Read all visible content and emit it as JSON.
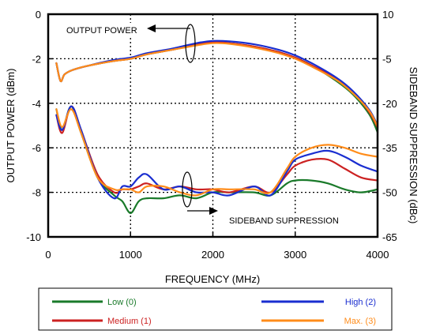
{
  "chart_data": {
    "type": "line",
    "xlabel": "FREQUENCY (MHz)",
    "ylabel_left": "OUTPUT POWER (dBm)",
    "ylabel_right": "SIDEBAND SUPPRESSION (dBc)",
    "xlim": [
      0,
      4000
    ],
    "ylim_left": [
      -10,
      0
    ],
    "ylim_right": [
      -65,
      10
    ],
    "x_ticks": [
      "0",
      "1000",
      "2000",
      "3000",
      "4000"
    ],
    "y_ticks_left": [
      "0",
      "-2",
      "-4",
      "-6",
      "-8",
      "-10"
    ],
    "y_ticks_right": [
      "10",
      "-5",
      "-20",
      "-35",
      "-50",
      "-65"
    ],
    "grid": true,
    "legend_position": "bottom",
    "annotations": {
      "output_power": "OUTPUT POWER",
      "sideband_suppression": "SIDEBAND SUPPRESSION"
    },
    "series": [
      {
        "name": "Low (0)",
        "color": "#1a7a2a",
        "group": "output_power",
        "axis": "left",
        "x": [
          100,
          150,
          200,
          300,
          500,
          800,
          1000,
          1200,
          1500,
          1800,
          2000,
          2200,
          2500,
          2800,
          3000,
          3200,
          3500,
          3700,
          3900,
          4000
        ],
        "y": [
          -2.2,
          -3.0,
          -2.7,
          -2.5,
          -2.3,
          -2.1,
          -2.0,
          -1.8,
          -1.6,
          -1.35,
          -1.25,
          -1.3,
          -1.45,
          -1.7,
          -1.95,
          -2.3,
          -3.0,
          -3.6,
          -4.5,
          -5.3
        ]
      },
      {
        "name": "Medium (1)",
        "color": "#cc2222",
        "group": "output_power",
        "axis": "left",
        "x": [
          100,
          150,
          200,
          300,
          500,
          800,
          1000,
          1200,
          1500,
          1800,
          2000,
          2200,
          2500,
          2800,
          3000,
          3200,
          3500,
          3700,
          3900,
          4000
        ],
        "y": [
          -2.2,
          -3.0,
          -2.7,
          -2.5,
          -2.3,
          -2.1,
          -2.0,
          -1.8,
          -1.6,
          -1.35,
          -1.25,
          -1.3,
          -1.45,
          -1.7,
          -1.95,
          -2.3,
          -2.9,
          -3.5,
          -4.4,
          -5.1
        ]
      },
      {
        "name": "High (2)",
        "color": "#1a2ed0",
        "group": "output_power",
        "axis": "left",
        "x": [
          100,
          150,
          200,
          300,
          500,
          800,
          1000,
          1200,
          1500,
          1800,
          2000,
          2200,
          2500,
          2800,
          3000,
          3200,
          3500,
          3700,
          3900,
          4000
        ],
        "y": [
          -2.2,
          -3.0,
          -2.7,
          -2.5,
          -2.3,
          -2.05,
          -1.95,
          -1.75,
          -1.55,
          -1.3,
          -1.2,
          -1.22,
          -1.35,
          -1.6,
          -1.85,
          -2.2,
          -2.85,
          -3.45,
          -4.3,
          -5.0
        ]
      },
      {
        "name": "Max. (3)",
        "color": "#ff8c1a",
        "group": "output_power",
        "axis": "left",
        "x": [
          100,
          150,
          200,
          300,
          500,
          800,
          1000,
          1200,
          1500,
          1800,
          2000,
          2200,
          2500,
          2800,
          3000,
          3200,
          3500,
          3700,
          3900,
          4000
        ],
        "y": [
          -2.2,
          -3.0,
          -2.7,
          -2.5,
          -2.3,
          -2.1,
          -2.0,
          -1.8,
          -1.6,
          -1.4,
          -1.3,
          -1.33,
          -1.5,
          -1.75,
          -2.0,
          -2.35,
          -2.95,
          -3.55,
          -4.35,
          -5.05
        ]
      },
      {
        "name": "Low (0)",
        "color": "#1a7a2a",
        "group": "sideband_suppression",
        "axis": "right",
        "x": [
          100,
          170,
          280,
          400,
          600,
          800,
          900,
          1000,
          1100,
          1200,
          1400,
          1600,
          1800,
          2000,
          2200,
          2500,
          2700,
          2900,
          3000,
          3200,
          3400,
          3600,
          3800,
          4000
        ],
        "y": [
          -22,
          -29,
          -21,
          -30,
          -45,
          -51,
          -53,
          -57,
          -53,
          -52,
          -52,
          -51,
          -52,
          -50,
          -50,
          -50,
          -51,
          -47,
          -46,
          -46,
          -47,
          -49,
          -50,
          -49
        ]
      },
      {
        "name": "Medium (1)",
        "color": "#cc2222",
        "group": "sideband_suppression",
        "axis": "right",
        "x": [
          100,
          170,
          280,
          400,
          600,
          800,
          900,
          1000,
          1100,
          1200,
          1400,
          1600,
          1800,
          2000,
          2200,
          2500,
          2700,
          2900,
          3000,
          3200,
          3400,
          3600,
          3800,
          4000
        ],
        "y": [
          -24,
          -30,
          -21,
          -29,
          -44,
          -50,
          -49,
          -49,
          -48,
          -47,
          -49,
          -48,
          -49,
          -49,
          -50,
          -48,
          -50,
          -44,
          -41,
          -39,
          -39,
          -42,
          -45,
          -46
        ]
      },
      {
        "name": "High (2)",
        "color": "#1a2ed0",
        "group": "sideband_suppression",
        "axis": "right",
        "x": [
          100,
          170,
          280,
          400,
          600,
          800,
          900,
          1000,
          1100,
          1200,
          1400,
          1600,
          1800,
          2000,
          2200,
          2500,
          2700,
          2900,
          3000,
          3200,
          3400,
          3600,
          3800,
          4000
        ],
        "y": [
          -24,
          -29,
          -21,
          -29,
          -45,
          -52,
          -48,
          -48,
          -45,
          -44,
          -49,
          -48,
          -50,
          -50,
          -51,
          -48,
          -51,
          -43,
          -39,
          -37,
          -36,
          -38,
          -41,
          -43
        ]
      },
      {
        "name": "Max. (3)",
        "color": "#ff8c1a",
        "group": "sideband_suppression",
        "axis": "right",
        "x": [
          100,
          170,
          280,
          400,
          600,
          800,
          900,
          1000,
          1100,
          1200,
          1400,
          1600,
          1800,
          2000,
          2200,
          2500,
          2700,
          2900,
          3000,
          3200,
          3400,
          3600,
          3800,
          4000
        ],
        "y": [
          -22,
          -28,
          -22,
          -30,
          -45,
          -49,
          -49,
          -49,
          -50,
          -48,
          -48,
          -50,
          -51,
          -49,
          -49,
          -49,
          -50,
          -42,
          -38,
          -35,
          -34,
          -35,
          -37,
          -38
        ]
      }
    ]
  }
}
